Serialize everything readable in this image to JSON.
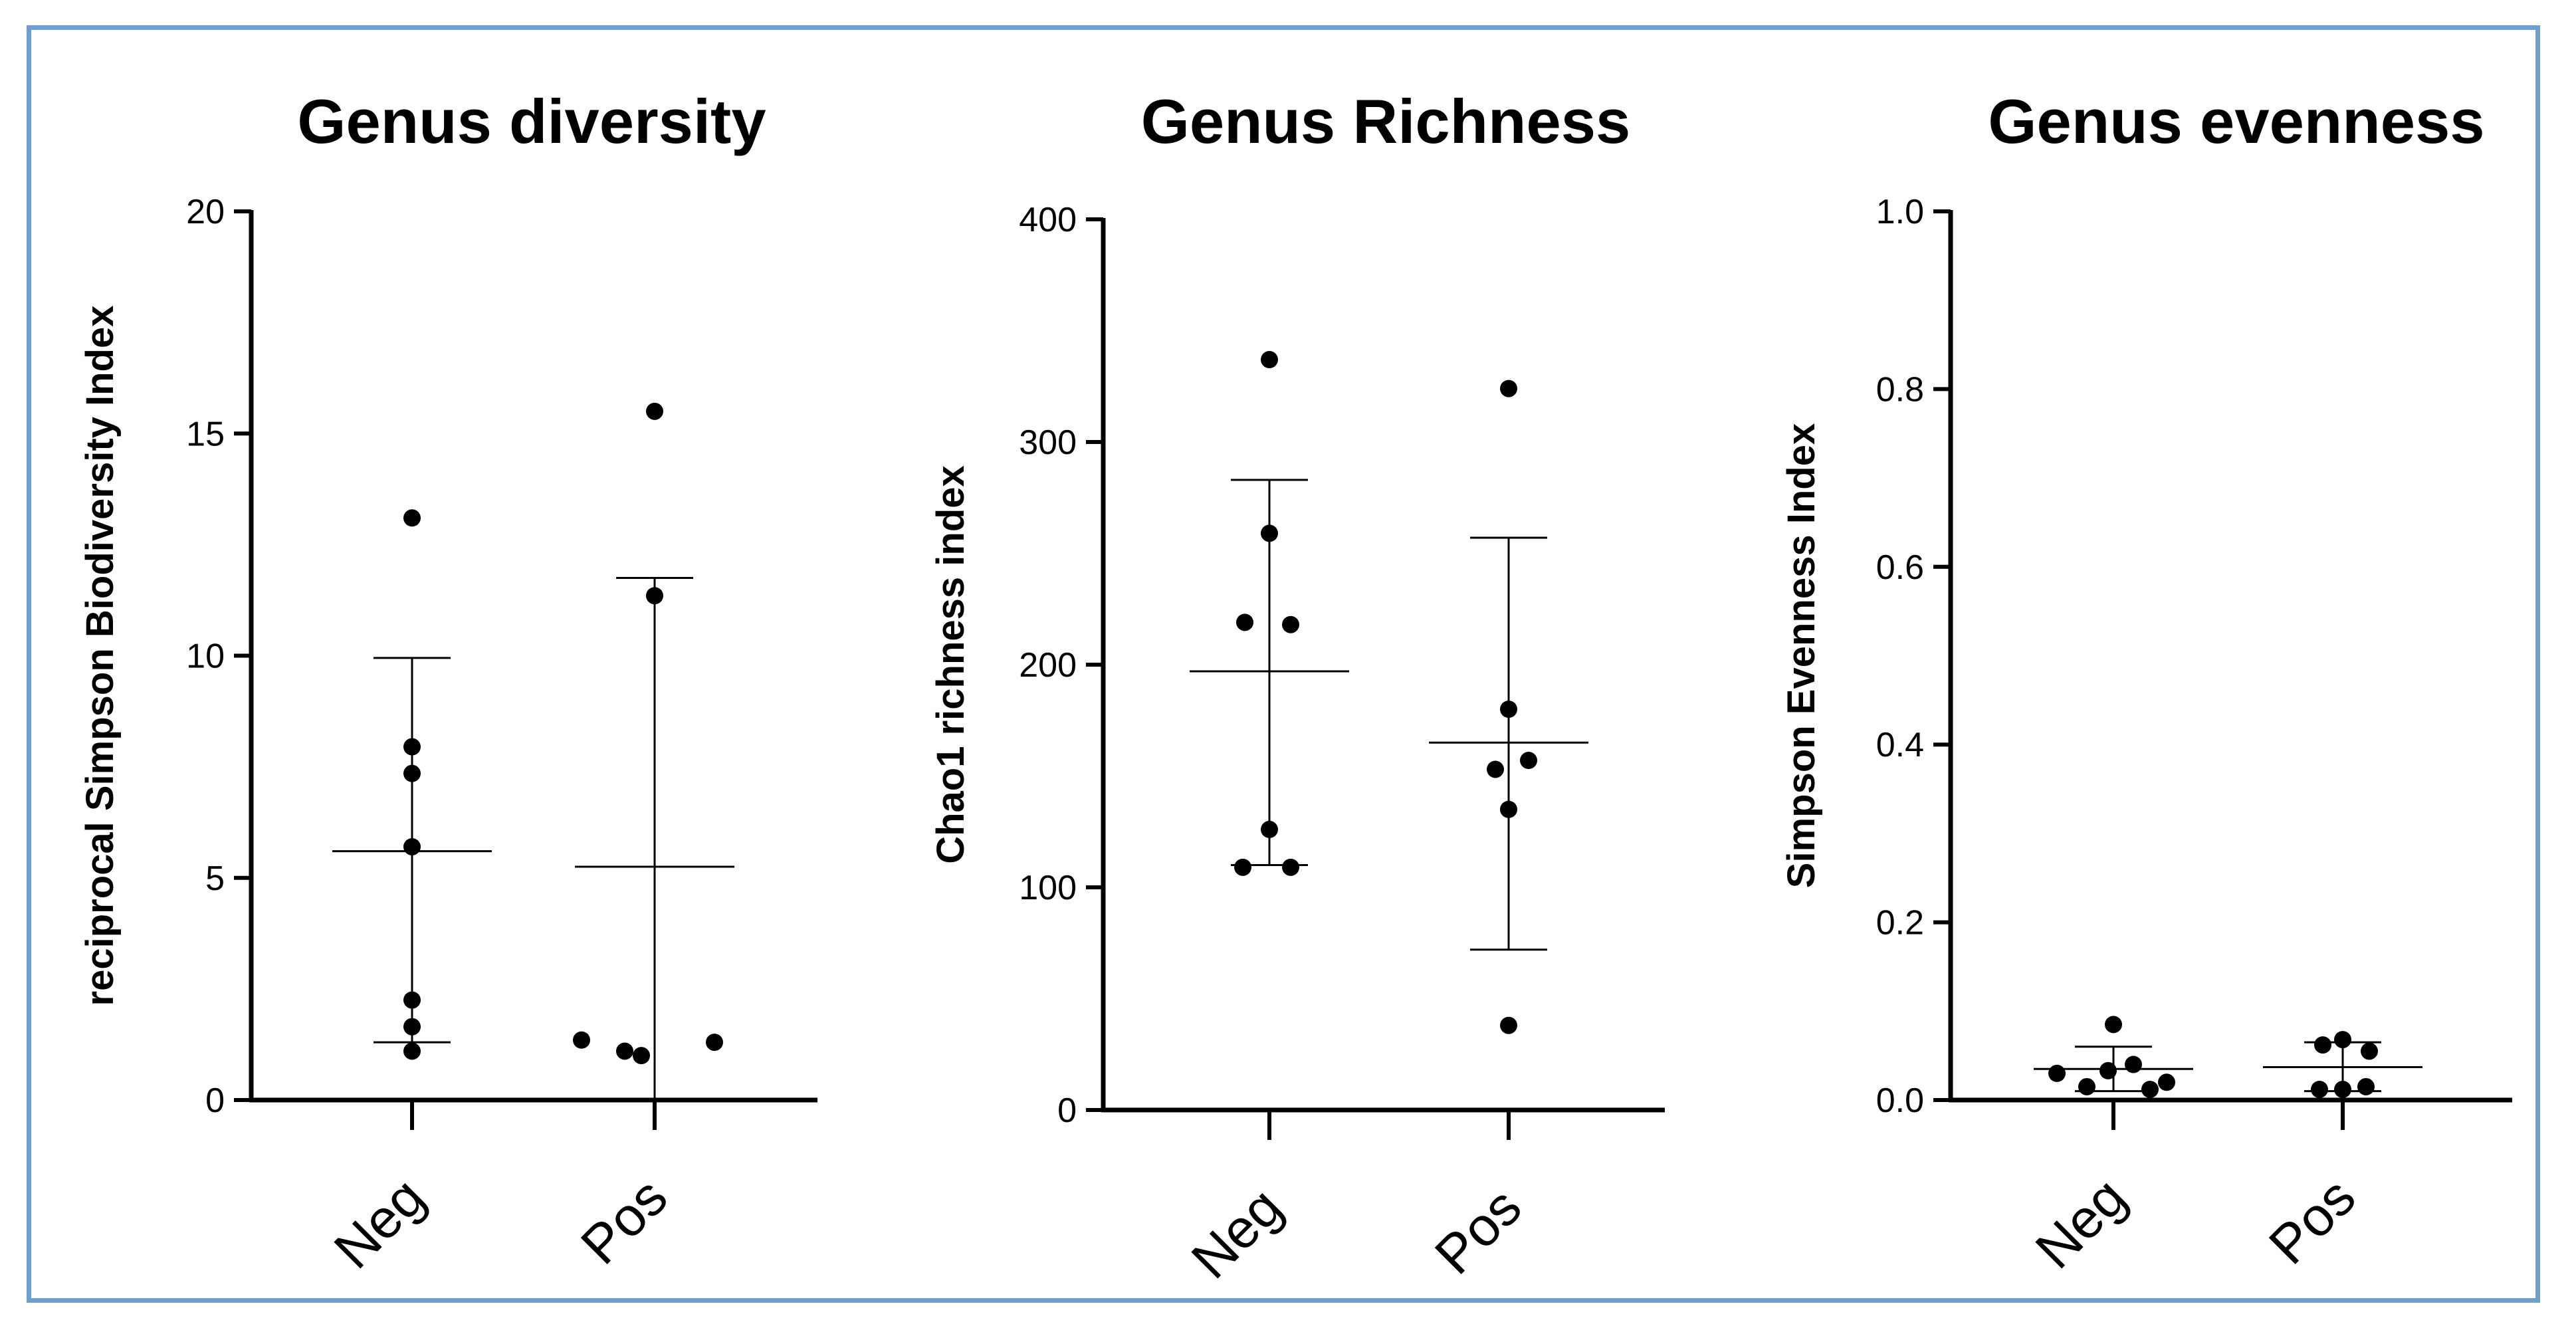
{
  "chart_data": [
    {
      "type": "scatter",
      "title": "Genus diversity",
      "xlabel": "",
      "ylabel": "reciprocal Simpson Biodiversity Index",
      "ylim": [
        0,
        20
      ],
      "yticks": [
        0,
        5,
        10,
        15,
        20
      ],
      "ytick_labels": [
        "0",
        "5",
        "10",
        "15",
        "20"
      ],
      "categories": [
        "Neg",
        "Pos"
      ],
      "series": [
        {
          "name": "Neg",
          "values": [
            13.1,
            7.95,
            7.35,
            5.7,
            2.25,
            1.65,
            1.1
          ],
          "mean": 5.6,
          "sd_upper": 9.95,
          "sd_lower": 1.3
        },
        {
          "name": "Pos",
          "values": [
            15.5,
            11.35,
            1.35,
            1.3,
            1.1,
            1.0
          ],
          "mean": 5.25,
          "sd_upper": 11.75,
          "sd_lower": 0.0
        }
      ]
    },
    {
      "type": "scatter",
      "title": "Genus Richness",
      "xlabel": "",
      "ylabel": "Chao1 richness index",
      "ylim": [
        0,
        400
      ],
      "yticks": [
        0,
        100,
        200,
        300,
        400
      ],
      "ytick_labels": [
        "0",
        "100",
        "200",
        "300",
        "400"
      ],
      "categories": [
        "Neg",
        "Pos"
      ],
      "series": [
        {
          "name": "Neg",
          "values": [
            337,
            259,
            219,
            218,
            126,
            109,
            109
          ],
          "mean": 197,
          "sd_upper": 283,
          "sd_lower": 110
        },
        {
          "name": "Pos",
          "values": [
            324,
            180,
            157,
            153,
            135,
            38
          ],
          "mean": 165,
          "sd_upper": 257,
          "sd_lower": 72
        }
      ]
    },
    {
      "type": "scatter",
      "title": "Genus evenness",
      "xlabel": "",
      "ylabel": "Simpson Evenness Index",
      "ylim": [
        0,
        1
      ],
      "yticks": [
        0,
        0.2,
        0.4,
        0.6,
        0.8,
        1.0
      ],
      "ytick_labels": [
        "0.0",
        "0.2",
        "0.4",
        "0.6",
        "0.8",
        "1.0"
      ],
      "categories": [
        "Neg",
        "Pos"
      ],
      "series": [
        {
          "name": "Neg",
          "values": [
            0.085,
            0.04,
            0.033,
            0.03,
            0.02,
            0.015,
            0.012
          ],
          "mean": 0.035,
          "sd_upper": 0.06,
          "sd_lower": 0.01
        },
        {
          "name": "Pos",
          "values": [
            0.068,
            0.062,
            0.055,
            0.015,
            0.012,
            0.012
          ],
          "mean": 0.037,
          "sd_upper": 0.065,
          "sd_lower": 0.01
        }
      ]
    }
  ]
}
